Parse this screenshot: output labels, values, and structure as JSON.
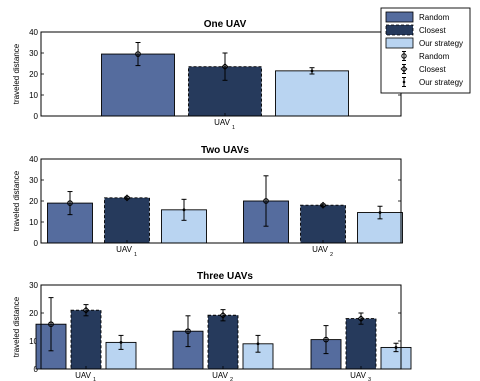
{
  "colors": {
    "random": "#556c9e",
    "closest": "#263a5c",
    "our_strategy": "#b9d4f1"
  },
  "legend": {
    "entries": [
      "Random",
      "Closest",
      "Our strategy",
      "Random",
      "Closest",
      "Our strategy"
    ]
  },
  "chart_data": [
    {
      "type": "bar",
      "title": "One UAV",
      "ylabel": "traveled distance",
      "ylim": [
        0,
        40
      ],
      "yticks": [
        "0",
        "10",
        "20",
        "30",
        "40"
      ],
      "categories": [
        {
          "base": "UAV",
          "sub": "1"
        }
      ],
      "series": [
        {
          "name": "Random",
          "values": [
            29.5
          ],
          "err": [
            5.5
          ]
        },
        {
          "name": "Closest",
          "values": [
            23.5
          ],
          "err": [
            6.5
          ]
        },
        {
          "name": "Our strategy",
          "values": [
            21.5
          ],
          "err": [
            1.5
          ]
        }
      ]
    },
    {
      "type": "bar",
      "title": "Two UAVs",
      "ylabel": "traveled distance",
      "ylim": [
        0,
        40
      ],
      "yticks": [
        "0",
        "10",
        "20",
        "30",
        "40"
      ],
      "categories": [
        {
          "base": "UAV",
          "sub": "1"
        },
        {
          "base": "UAV",
          "sub": "2"
        }
      ],
      "series": [
        {
          "name": "Random",
          "values": [
            19,
            20
          ],
          "err": [
            5.5,
            12
          ]
        },
        {
          "name": "Closest",
          "values": [
            21.5,
            18
          ],
          "err": [
            0.5,
            0.5
          ]
        },
        {
          "name": "Our strategy",
          "values": [
            15.8,
            14.5
          ],
          "err": [
            5,
            3
          ]
        }
      ]
    },
    {
      "type": "bar",
      "title": "Three UAVs",
      "ylabel": "traveled distance",
      "ylim": [
        0,
        30
      ],
      "yticks": [
        "0",
        "10",
        "20",
        "30"
      ],
      "categories": [
        {
          "base": "UAV",
          "sub": "1"
        },
        {
          "base": "UAV",
          "sub": "2"
        },
        {
          "base": "UAV",
          "sub": "3"
        }
      ],
      "series": [
        {
          "name": "Random",
          "values": [
            16,
            13.5,
            10.5
          ],
          "err": [
            9.5,
            5.5,
            5
          ]
        },
        {
          "name": "Closest",
          "values": [
            21,
            19.2,
            18
          ],
          "err": [
            2,
            2,
            2
          ]
        },
        {
          "name": "Our strategy",
          "values": [
            9.5,
            9,
            7.7
          ],
          "err": [
            2.5,
            3,
            1.5
          ]
        }
      ]
    }
  ]
}
